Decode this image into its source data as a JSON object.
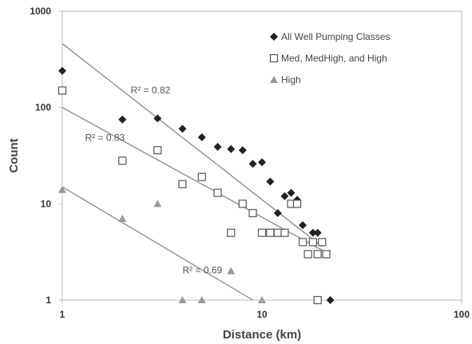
{
  "chart_data": {
    "type": "scatter",
    "title": "",
    "xlabel": "Distance (km)",
    "ylabel": "Count",
    "xscale": "log",
    "yscale": "log",
    "xlim": [
      1,
      100
    ],
    "ylim": [
      1,
      1000
    ],
    "x_ticks": [
      "1",
      "10",
      "100"
    ],
    "y_ticks": [
      "1",
      "10",
      "100",
      "1000"
    ],
    "grid": false,
    "legend_position": "top-right",
    "series": [
      {
        "name": "All Well Pumping Classes",
        "marker": "diamond",
        "color": "#222222",
        "points": [
          [
            1,
            240
          ],
          [
            2,
            75
          ],
          [
            3,
            77
          ],
          [
            4,
            60
          ],
          [
            5,
            49
          ],
          [
            6,
            39
          ],
          [
            7,
            37
          ],
          [
            8,
            36
          ],
          [
            9,
            26
          ],
          [
            10,
            27
          ],
          [
            11,
            17
          ],
          [
            12,
            8
          ],
          [
            13,
            12
          ],
          [
            14,
            13
          ],
          [
            15,
            11
          ],
          [
            16,
            6
          ],
          [
            18,
            5
          ],
          [
            19,
            5
          ],
          [
            22,
            1
          ]
        ]
      },
      {
        "name": "Med, MedHigh, and High",
        "marker": "square-open",
        "color": "#555555",
        "points": [
          [
            1,
            150
          ],
          [
            2,
            28
          ],
          [
            3,
            36
          ],
          [
            4,
            16
          ],
          [
            5,
            19
          ],
          [
            6,
            13
          ],
          [
            7,
            5
          ],
          [
            8,
            10
          ],
          [
            9,
            8
          ],
          [
            10,
            5
          ],
          [
            11,
            5
          ],
          [
            12,
            5
          ],
          [
            13,
            5
          ],
          [
            14,
            10
          ],
          [
            15,
            10
          ],
          [
            16,
            4
          ],
          [
            17,
            3
          ],
          [
            18,
            4
          ],
          [
            19,
            3
          ],
          [
            20,
            4
          ],
          [
            21,
            3
          ],
          [
            19,
            1
          ]
        ]
      },
      {
        "name": "High",
        "marker": "triangle",
        "color": "#999999",
        "points": [
          [
            1,
            14
          ],
          [
            2,
            7
          ],
          [
            3,
            10
          ],
          [
            4,
            1
          ],
          [
            5,
            1
          ],
          [
            7,
            2
          ],
          [
            10,
            1
          ]
        ]
      }
    ],
    "trendlines": [
      {
        "series": "All Well Pumping Classes",
        "from": [
          1,
          460
        ],
        "to": [
          20,
          3.6
        ]
      },
      {
        "series": "Med, MedHigh, and High",
        "from": [
          1,
          100
        ],
        "to": [
          20,
          3.3
        ]
      },
      {
        "series": "High",
        "from": [
          1,
          15
        ],
        "to": [
          9,
          1
        ]
      }
    ],
    "annotations": [
      {
        "text": "R² = 0.82",
        "x": 2.2,
        "y": 140
      },
      {
        "text": "R² = 0.83",
        "x": 1.3,
        "y": 45
      },
      {
        "text": "R² = 0.69",
        "x": 4.0,
        "y": 1.9
      }
    ],
    "colors": {
      "axis": "#bbbbbb",
      "trendline": "#888888"
    }
  }
}
